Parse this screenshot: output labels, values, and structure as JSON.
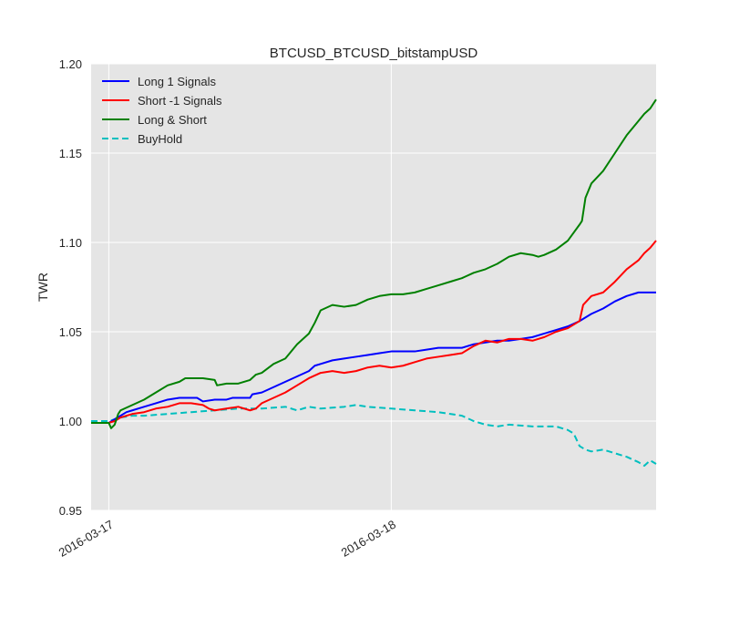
{
  "chart_data": {
    "type": "line",
    "title": "BTCUSD_BTCUSD_bitstampUSD",
    "xlabel": "",
    "ylabel": "TWR",
    "x_tick_labels": [
      "2016-03-17",
      "2016-03-18"
    ],
    "y_tick_labels": [
      "0.95",
      "1.00",
      "1.05",
      "1.10",
      "1.15",
      "1.20"
    ],
    "x_tick_positions_hours": [
      0,
      24
    ],
    "xlim_hours": [
      -1.5,
      46.5
    ],
    "ylim": [
      0.95,
      1.2
    ],
    "grid": true,
    "legend_position": "top-left",
    "series": [
      {
        "name": "Long 1 Signals",
        "color": "#0000ff",
        "dash": false,
        "points": [
          [
            -1.5,
            0.999
          ],
          [
            0,
            0.999
          ],
          [
            0.5,
            1.001
          ],
          [
            1,
            1.003
          ],
          [
            1.5,
            1.005
          ],
          [
            2,
            1.006
          ],
          [
            3,
            1.008
          ],
          [
            4,
            1.01
          ],
          [
            5,
            1.012
          ],
          [
            6,
            1.013
          ],
          [
            7.5,
            1.013
          ],
          [
            8,
            1.011
          ],
          [
            9,
            1.012
          ],
          [
            10,
            1.012
          ],
          [
            10.5,
            1.013
          ],
          [
            12,
            1.013
          ],
          [
            12.2,
            1.015
          ],
          [
            13,
            1.016
          ],
          [
            14,
            1.019
          ],
          [
            15,
            1.022
          ],
          [
            16,
            1.025
          ],
          [
            17,
            1.028
          ],
          [
            17.5,
            1.031
          ],
          [
            18,
            1.032
          ],
          [
            19,
            1.034
          ],
          [
            20,
            1.035
          ],
          [
            21,
            1.036
          ],
          [
            22,
            1.037
          ],
          [
            23,
            1.038
          ],
          [
            24,
            1.039
          ],
          [
            26,
            1.039
          ],
          [
            27,
            1.04
          ],
          [
            28,
            1.041
          ],
          [
            30,
            1.041
          ],
          [
            31,
            1.043
          ],
          [
            32,
            1.044
          ],
          [
            33,
            1.045
          ],
          [
            34,
            1.045
          ],
          [
            35,
            1.046
          ],
          [
            36,
            1.047
          ],
          [
            37,
            1.049
          ],
          [
            38,
            1.051
          ],
          [
            39,
            1.053
          ],
          [
            40,
            1.056
          ],
          [
            41,
            1.06
          ],
          [
            42,
            1.063
          ],
          [
            43,
            1.067
          ],
          [
            44,
            1.07
          ],
          [
            45,
            1.072
          ],
          [
            46.5,
            1.072
          ]
        ]
      },
      {
        "name": "Short -1 Signals",
        "color": "#ff0000",
        "dash": false,
        "points": [
          [
            -1.5,
            0.999
          ],
          [
            0,
            0.999
          ],
          [
            0.5,
            1.0
          ],
          [
            1,
            1.002
          ],
          [
            2,
            1.004
          ],
          [
            3,
            1.005
          ],
          [
            4,
            1.007
          ],
          [
            5,
            1.008
          ],
          [
            6,
            1.01
          ],
          [
            7,
            1.01
          ],
          [
            8,
            1.009
          ],
          [
            8.5,
            1.007
          ],
          [
            9,
            1.006
          ],
          [
            10,
            1.007
          ],
          [
            11,
            1.008
          ],
          [
            12,
            1.006
          ],
          [
            12.5,
            1.007
          ],
          [
            13,
            1.01
          ],
          [
            14,
            1.013
          ],
          [
            15,
            1.016
          ],
          [
            16,
            1.02
          ],
          [
            17,
            1.024
          ],
          [
            18,
            1.027
          ],
          [
            19,
            1.028
          ],
          [
            20,
            1.027
          ],
          [
            21,
            1.028
          ],
          [
            22,
            1.03
          ],
          [
            23,
            1.031
          ],
          [
            24,
            1.03
          ],
          [
            25,
            1.031
          ],
          [
            26,
            1.033
          ],
          [
            27,
            1.035
          ],
          [
            28,
            1.036
          ],
          [
            29,
            1.037
          ],
          [
            30,
            1.038
          ],
          [
            31,
            1.042
          ],
          [
            32,
            1.045
          ],
          [
            33,
            1.044
          ],
          [
            34,
            1.046
          ],
          [
            35,
            1.046
          ],
          [
            36,
            1.045
          ],
          [
            37,
            1.047
          ],
          [
            38,
            1.05
          ],
          [
            39,
            1.052
          ],
          [
            40,
            1.056
          ],
          [
            40.3,
            1.065
          ],
          [
            41,
            1.07
          ],
          [
            42,
            1.072
          ],
          [
            43,
            1.078
          ],
          [
            44,
            1.085
          ],
          [
            45,
            1.09
          ],
          [
            45.5,
            1.094
          ],
          [
            46,
            1.097
          ],
          [
            46.5,
            1.101
          ]
        ]
      },
      {
        "name": "Long & Short",
        "color": "#008000",
        "dash": false,
        "points": [
          [
            -1.5,
            0.999
          ],
          [
            0,
            0.999
          ],
          [
            0.2,
            0.996
          ],
          [
            0.5,
            0.998
          ],
          [
            0.8,
            1.004
          ],
          [
            1,
            1.006
          ],
          [
            2,
            1.009
          ],
          [
            3,
            1.012
          ],
          [
            4,
            1.016
          ],
          [
            5,
            1.02
          ],
          [
            6,
            1.022
          ],
          [
            6.5,
            1.024
          ],
          [
            7,
            1.024
          ],
          [
            8,
            1.024
          ],
          [
            9,
            1.023
          ],
          [
            9.2,
            1.02
          ],
          [
            10,
            1.021
          ],
          [
            11,
            1.021
          ],
          [
            12,
            1.023
          ],
          [
            12.5,
            1.026
          ],
          [
            13,
            1.027
          ],
          [
            14,
            1.032
          ],
          [
            15,
            1.035
          ],
          [
            16,
            1.043
          ],
          [
            17,
            1.049
          ],
          [
            17.5,
            1.055
          ],
          [
            18,
            1.062
          ],
          [
            19,
            1.065
          ],
          [
            20,
            1.064
          ],
          [
            21,
            1.065
          ],
          [
            22,
            1.068
          ],
          [
            23,
            1.07
          ],
          [
            24,
            1.071
          ],
          [
            25,
            1.071
          ],
          [
            26,
            1.072
          ],
          [
            27,
            1.074
          ],
          [
            28,
            1.076
          ],
          [
            29,
            1.078
          ],
          [
            30,
            1.08
          ],
          [
            31,
            1.083
          ],
          [
            32,
            1.085
          ],
          [
            33,
            1.088
          ],
          [
            34,
            1.092
          ],
          [
            35,
            1.094
          ],
          [
            36,
            1.093
          ],
          [
            36.5,
            1.092
          ],
          [
            37,
            1.093
          ],
          [
            38,
            1.096
          ],
          [
            39,
            1.101
          ],
          [
            40,
            1.11
          ],
          [
            40.2,
            1.112
          ],
          [
            40.5,
            1.125
          ],
          [
            41,
            1.133
          ],
          [
            42,
            1.14
          ],
          [
            43,
            1.15
          ],
          [
            44,
            1.16
          ],
          [
            45,
            1.168
          ],
          [
            45.5,
            1.172
          ],
          [
            46,
            1.175
          ],
          [
            46.5,
            1.18
          ]
        ]
      },
      {
        "name": "BuyHold",
        "color": "#00bfbf",
        "dash": true,
        "points": [
          [
            -1.5,
            1.0
          ],
          [
            0,
            1.0
          ],
          [
            0.5,
            1.001
          ],
          [
            1,
            1.002
          ],
          [
            2,
            1.003
          ],
          [
            3,
            1.003
          ],
          [
            5,
            1.004
          ],
          [
            7,
            1.005
          ],
          [
            9,
            1.006
          ],
          [
            11,
            1.007
          ],
          [
            13,
            1.007
          ],
          [
            15,
            1.008
          ],
          [
            16,
            1.006
          ],
          [
            17,
            1.008
          ],
          [
            18,
            1.007
          ],
          [
            20,
            1.008
          ],
          [
            21,
            1.009
          ],
          [
            22,
            1.008
          ],
          [
            24,
            1.007
          ],
          [
            26,
            1.006
          ],
          [
            28,
            1.005
          ],
          [
            29,
            1.004
          ],
          [
            30,
            1.003
          ],
          [
            31,
            1.0
          ],
          [
            32,
            0.998
          ],
          [
            33,
            0.997
          ],
          [
            34,
            0.998
          ],
          [
            36,
            0.997
          ],
          [
            38,
            0.997
          ],
          [
            39,
            0.995
          ],
          [
            39.5,
            0.993
          ],
          [
            40,
            0.986
          ],
          [
            40.5,
            0.984
          ],
          [
            41,
            0.983
          ],
          [
            42,
            0.984
          ],
          [
            43,
            0.982
          ],
          [
            44,
            0.98
          ],
          [
            45,
            0.977
          ],
          [
            45.5,
            0.975
          ],
          [
            46,
            0.978
          ],
          [
            46.5,
            0.976
          ]
        ]
      }
    ]
  }
}
